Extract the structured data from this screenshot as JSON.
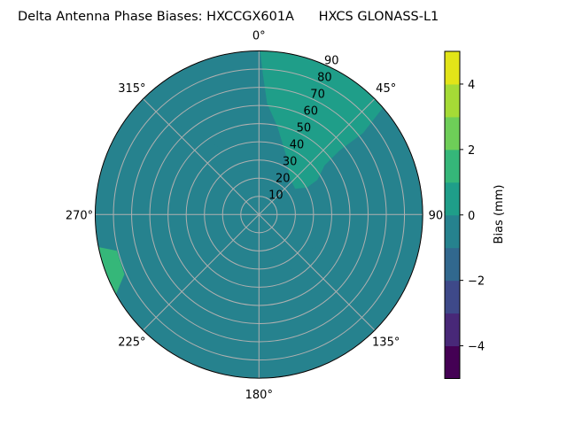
{
  "chart_data": {
    "type": "polar-contour",
    "title": "Delta Antenna Phase Biases: HXCCGX601A      HXCS GLONASS-L1",
    "angle_ticks": [
      {
        "az": 0,
        "label": "0°"
      },
      {
        "az": 45,
        "label": "45°"
      },
      {
        "az": 90,
        "label": "90°"
      },
      {
        "az": 135,
        "label": "135°"
      },
      {
        "az": 180,
        "label": "180°"
      },
      {
        "az": 225,
        "label": "225°"
      },
      {
        "az": 270,
        "label": "270°"
      },
      {
        "az": 315,
        "label": "315°"
      }
    ],
    "radial_ticks": [
      10,
      20,
      30,
      40,
      50,
      60,
      70,
      80,
      90
    ],
    "radial_labels": [
      "10",
      "20",
      "30",
      "40",
      "50",
      "60",
      "70",
      "80",
      "90"
    ],
    "rlim": [
      0,
      90
    ],
    "levels": [
      -5,
      -4,
      -3,
      -2,
      -1,
      0,
      1,
      2,
      3,
      4,
      5
    ],
    "level_colors": [
      "#440154",
      "#482878",
      "#3e4989",
      "#31688e",
      "#26828e",
      "#1f9e89",
      "#35b779",
      "#6ece58",
      "#a5db36",
      "#e2e418"
    ],
    "background_band": [
      0,
      1
    ],
    "regions": [
      {
        "band": [
          -1,
          0
        ],
        "points": [
          [
            0.3,
            90
          ],
          [
            1.6,
            77.3
          ],
          [
            4.2,
            61.3
          ],
          [
            12,
            49.2
          ],
          [
            25.3,
            35.3
          ],
          [
            39,
            26.5
          ],
          [
            54.7,
            24.4
          ],
          [
            60.6,
            30.3
          ],
          [
            59.4,
            37.3
          ],
          [
            53.1,
            45.1
          ],
          [
            51.5,
            56.5
          ],
          [
            51.9,
            72.7
          ],
          [
            49,
            90
          ],
          [
            0.3,
            90
          ]
        ]
      },
      {
        "band": [
          -1,
          0
        ],
        "points": [
          [
            315,
            90
          ],
          [
            317,
            68.1
          ],
          [
            324.6,
            55.1
          ],
          [
            328.9,
            43
          ],
          [
            333.8,
            28.3
          ],
          [
            347,
            19.5
          ],
          [
            346,
            7.8
          ],
          [
            166,
            2.2
          ],
          [
            160,
            10.9
          ],
          [
            151,
            21
          ],
          [
            136,
            28.7
          ],
          [
            122,
            35
          ],
          [
            102.7,
            53.7
          ],
          [
            91.5,
            78.3
          ],
          [
            89,
            90
          ],
          [
            135,
            90
          ],
          [
            136,
            68.3
          ],
          [
            138.2,
            51.8
          ],
          [
            147.5,
            37.1
          ],
          [
            164.2,
            25.8
          ],
          [
            178.8,
            24.8
          ],
          [
            188.4,
            30
          ],
          [
            190.7,
            36.8
          ],
          [
            185.7,
            52.6
          ],
          [
            182.3,
            68.6
          ],
          [
            180.5,
            90
          ],
          [
            225,
            90
          ],
          [
            226.4,
            68.8
          ],
          [
            234.5,
            51.2
          ],
          [
            246.5,
            41.9
          ],
          [
            263.7,
            33.7
          ],
          [
            275.3,
            30.4
          ],
          [
            278.5,
            40.5
          ],
          [
            279,
            53.7
          ],
          [
            277,
            77.9
          ],
          [
            277,
            90
          ],
          [
            315,
            90
          ]
        ]
      },
      {
        "band": [
          1,
          2
        ],
        "points": [
          [
            259,
            90
          ],
          [
            255.7,
            80.6
          ],
          [
            246,
            81
          ],
          [
            240,
            90
          ],
          [
            259,
            90
          ]
        ]
      }
    ],
    "colorbar": {
      "label": "Bias (mm)",
      "ticks": [
        -4,
        -2,
        0,
        2,
        4
      ],
      "tick_labels": [
        "−4",
        "−2",
        "0",
        "2",
        "4"
      ],
      "range": [
        -5,
        5
      ]
    }
  }
}
